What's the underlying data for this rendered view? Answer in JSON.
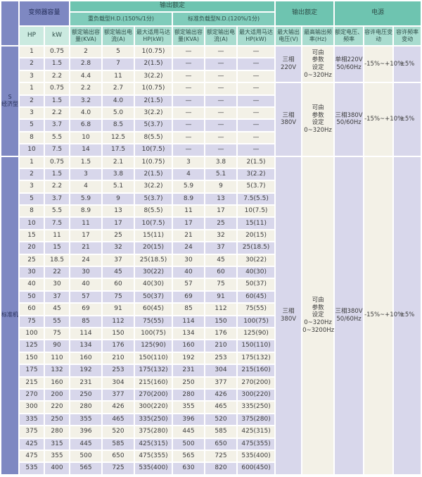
{
  "palette": {
    "header_teal_dark": "#6ec4b0",
    "header_teal_mid": "#80ccbb",
    "header_teal_light": "#a9dccf",
    "header_mint": "#cbeae0",
    "group_blue": "#7e88c2",
    "row_cream": "#f3f1e7",
    "row_lavender": "#d8d7eb"
  },
  "header": {
    "inverter_capacity": "变频器容量",
    "output_rating": "输出额定",
    "heavy_duty": "重负载型H.D.(150%/1分)",
    "normal_duty": "标准负载型N.D.(120%/1分)",
    "col_hp": "HP",
    "col_kw": "kW",
    "col_kva": "额定输出容量(KVA)",
    "col_current": "额定输出电流(A)",
    "col_motor": "最大适用马达HP(kW)",
    "col_max_voltage": "最大输出电压(V)",
    "col_max_freq": "最高输出频率(Hz)",
    "power_supply": "电源",
    "col_rated_voltage_freq": "额定电压、频率",
    "col_voltage_tolerance": "容许电压变动",
    "col_freq_tolerance": "容许频率变动"
  },
  "groups": [
    {
      "name": "economy",
      "label_lines": [
        "S",
        "经济型"
      ],
      "subgroups": [
        {
          "rows": [
            [
              "1",
              "0.75",
              "2",
              "5",
              "1(0.75)",
              "—",
              "—",
              "—"
            ],
            [
              "2",
              "1.5",
              "2.8",
              "7",
              "2(1.5)",
              "—",
              "—",
              "—"
            ],
            [
              "3",
              "2.2",
              "4.4",
              "11",
              "3(2.2)",
              "—",
              "—",
              "—"
            ]
          ],
          "max_output_voltage_lines": [
            "三相",
            "220V"
          ],
          "max_output_frequency_lines": [
            "可由",
            "参数",
            "设定",
            "0~320Hz"
          ],
          "rated_voltage_frequency_lines": [
            "单相220V",
            "50/60Hz"
          ],
          "voltage_tolerance": "-15%~+10%",
          "frequency_tolerance": "±5%"
        },
        {
          "rows": [
            [
              "1",
              "0.75",
              "2.2",
              "2.7",
              "1(0.75)",
              "—",
              "—",
              "—"
            ],
            [
              "2",
              "1.5",
              "3.2",
              "4.0",
              "2(1.5)",
              "—",
              "—",
              "—"
            ],
            [
              "3",
              "2.2",
              "4.0",
              "5.0",
              "3(2.2)",
              "—",
              "—",
              "—"
            ],
            [
              "5",
              "3.7",
              "6.8",
              "8.5",
              "5(3.7)",
              "—",
              "—",
              "—"
            ],
            [
              "8",
              "5.5",
              "10",
              "12.5",
              "8(5.5)",
              "—",
              "—",
              "—"
            ],
            [
              "10",
              "7.5",
              "14",
              "17.5",
              "10(7.5)",
              "—",
              "—",
              "—"
            ]
          ],
          "max_output_voltage_lines": [
            "三相",
            "380V"
          ],
          "max_output_frequency_lines": [
            "可由",
            "参数",
            "设定",
            "0~320Hz"
          ],
          "rated_voltage_frequency_lines": [
            "三相380V",
            "50/60Hz"
          ],
          "voltage_tolerance": "-15%~+10%",
          "frequency_tolerance": "±5%"
        }
      ]
    },
    {
      "name": "standard",
      "label_lines": [
        "标准机"
      ],
      "subgroups": [
        {
          "rows": [
            [
              "1",
              "0.75",
              "1.5",
              "2.1",
              "1(0.75)",
              "3",
              "3.8",
              "2(1.5)"
            ],
            [
              "2",
              "1.5",
              "3",
              "3.8",
              "2(1.5)",
              "4",
              "5.1",
              "3(2.2)"
            ],
            [
              "3",
              "2.2",
              "4",
              "5.1",
              "3(2.2)",
              "5.9",
              "9",
              "5(3.7)"
            ],
            [
              "5",
              "3.7",
              "5.9",
              "9",
              "5(3.7)",
              "8.9",
              "13",
              "7.5(5.5)"
            ],
            [
              "8",
              "5.5",
              "8.9",
              "13",
              "8(5.5)",
              "11",
              "17",
              "10(7.5)"
            ],
            [
              "10",
              "7.5",
              "11",
              "17",
              "10(7.5)",
              "17",
              "25",
              "15(11)"
            ],
            [
              "15",
              "11",
              "17",
              "25",
              "15(11)",
              "21",
              "32",
              "20(15)"
            ],
            [
              "20",
              "15",
              "21",
              "32",
              "20(15)",
              "24",
              "37",
              "25(18.5)"
            ],
            [
              "25",
              "18.5",
              "24",
              "37",
              "25(18.5)",
              "30",
              "45",
              "30(22)"
            ],
            [
              "30",
              "22",
              "30",
              "45",
              "30(22)",
              "40",
              "60",
              "40(30)"
            ],
            [
              "40",
              "30",
              "40",
              "60",
              "40(30)",
              "57",
              "75",
              "50(37)"
            ],
            [
              "50",
              "37",
              "57",
              "75",
              "50(37)",
              "69",
              "91",
              "60(45)"
            ],
            [
              "60",
              "45",
              "69",
              "91",
              "60(45)",
              "85",
              "112",
              "75(55)"
            ],
            [
              "75",
              "55",
              "85",
              "112",
              "75(55)",
              "114",
              "150",
              "100(75)"
            ],
            [
              "100",
              "75",
              "114",
              "150",
              "100(75)",
              "134",
              "176",
              "125(90)"
            ],
            [
              "125",
              "90",
              "134",
              "176",
              "125(90)",
              "160",
              "210",
              "150(110)"
            ],
            [
              "150",
              "110",
              "160",
              "210",
              "150(110)",
              "192",
              "253",
              "175(132)"
            ],
            [
              "175",
              "132",
              "192",
              "253",
              "175(132)",
              "231",
              "304",
              "215(160)"
            ],
            [
              "215",
              "160",
              "231",
              "304",
              "215(160)",
              "250",
              "377",
              "270(200)"
            ],
            [
              "270",
              "200",
              "250",
              "377",
              "270(200)",
              "280",
              "426",
              "300(220)"
            ],
            [
              "300",
              "220",
              "280",
              "426",
              "300(220)",
              "355",
              "465",
              "335(250)"
            ],
            [
              "335",
              "250",
              "355",
              "465",
              "335(250)",
              "396",
              "520",
              "375(280)"
            ],
            [
              "375",
              "280",
              "396",
              "520",
              "375(280)",
              "445",
              "585",
              "425(315)"
            ],
            [
              "425",
              "315",
              "445",
              "585",
              "425(315)",
              "500",
              "650",
              "475(355)"
            ],
            [
              "475",
              "355",
              "500",
              "650",
              "475(355)",
              "565",
              "725",
              "535(400)"
            ],
            [
              "535",
              "400",
              "565",
              "725",
              "535(400)",
              "630",
              "820",
              "600(450)"
            ]
          ],
          "max_output_voltage_lines": [
            "三相",
            "380V"
          ],
          "max_output_frequency_lines": [
            "可由",
            "参数",
            "设定",
            "0~320Hz",
            "0~3200Hz"
          ],
          "rated_voltage_frequency_lines": [
            "三相380V",
            "50/60Hz"
          ],
          "voltage_tolerance": "-15%~+10%",
          "frequency_tolerance": "±5%"
        }
      ]
    }
  ]
}
